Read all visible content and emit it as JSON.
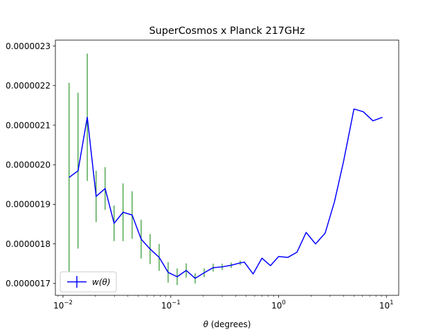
{
  "chart_data": {
    "type": "line",
    "title": "SuperCosmos x Planck 217GHz",
    "xlabel_symbol": "θ",
    "xlabel_unit": " (degrees)",
    "ylabel": "",
    "xscale": "log",
    "xlim": [
      0.0085,
      13
    ],
    "ylim": [
      1.67e-06,
      2.315e-06
    ],
    "x_ticks": [
      {
        "value": 0.01,
        "base": "10",
        "exp": "−2"
      },
      {
        "value": 0.1,
        "base": "10",
        "exp": "−1"
      },
      {
        "value": 1,
        "base": "10",
        "exp": "0"
      },
      {
        "value": 10,
        "base": "10",
        "exp": "1"
      }
    ],
    "y_ticks": [
      {
        "value": 1.7e-06,
        "label": "0.0000017"
      },
      {
        "value": 1.8e-06,
        "label": "0.0000018"
      },
      {
        "value": 1.9e-06,
        "label": "0.0000019"
      },
      {
        "value": 2e-06,
        "label": "0.0000020"
      },
      {
        "value": 2.1e-06,
        "label": "0.0000021"
      },
      {
        "value": 2.2e-06,
        "label": "0.0000022"
      },
      {
        "value": 2.3e-06,
        "label": "0.0000023"
      }
    ],
    "series": [
      {
        "name_symbol": "w(θ)",
        "line_color": "#0000ff",
        "errorbar_color": "#008000",
        "x": [
          0.0114,
          0.0138,
          0.0168,
          0.0203,
          0.0246,
          0.0298,
          0.0361,
          0.0438,
          0.0531,
          0.0643,
          0.078,
          0.0945,
          0.1146,
          0.1389,
          0.1683,
          0.204,
          0.2473,
          0.2997,
          0.3633,
          0.4403,
          0.4806,
          0.58,
          0.7,
          0.84,
          1.0,
          1.22,
          1.48,
          1.8,
          2.2,
          2.7,
          3.3,
          4.0,
          5.0,
          6.1,
          7.5,
          9.2
        ],
        "y": [
          1.968e-06,
          1.985e-06,
          2.12e-06,
          1.92e-06,
          1.94e-06,
          1.852e-06,
          1.88e-06,
          1.873e-06,
          1.812e-06,
          1.787e-06,
          1.766e-06,
          1.728e-06,
          1.717e-06,
          1.733e-06,
          1.713e-06,
          1.727e-06,
          1.74e-06,
          1.742e-06,
          1.746e-06,
          1.752e-06,
          1.754e-06,
          1.724e-06,
          1.764e-06,
          1.745e-06,
          1.768e-06,
          1.766e-06,
          1.779e-06,
          1.829e-06,
          1.8e-06,
          1.827e-06,
          1.907e-06,
          2.008e-06,
          2.141e-06,
          2.134e-06,
          2.111e-06,
          2.12e-06
        ],
        "err": [
          2.39e-07,
          1.97e-07,
          1.61e-07,
          6.5e-08,
          5.4e-08,
          4.5e-08,
          7.3e-08,
          6e-08,
          4.9e-08,
          3.8e-08,
          3.4e-08,
          2.6e-08,
          2.1e-08,
          1.8e-08,
          1.3e-08,
          1.1e-08,
          1e-08,
          8e-09,
          7e-09,
          6e-09,
          null,
          null,
          null,
          null,
          null,
          null,
          null,
          null,
          null,
          null,
          null,
          null,
          null,
          null,
          null,
          null
        ]
      }
    ],
    "legend_position": "lower left",
    "grid": false
  }
}
